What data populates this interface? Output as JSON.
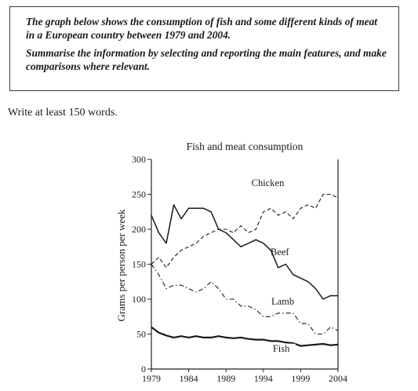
{
  "task": {
    "line1": "The graph below shows the consumption of fish and some different kinds of meat in a European country between 1979 and 2004.",
    "line2": "Summarise the information by selecting and reporting the main features, and make comparisons where relevant."
  },
  "instruction": "Write at least 150 words.",
  "chart_data": {
    "type": "line",
    "title": "Fish and meat consumption",
    "xlabel": "",
    "ylabel": "Grams per person per week",
    "xlim": [
      1979,
      2004
    ],
    "ylim": [
      0,
      300
    ],
    "xticks": [
      1979,
      1984,
      1989,
      1994,
      1999,
      2004
    ],
    "yticks": [
      0,
      50,
      100,
      150,
      200,
      250,
      300
    ],
    "legend": "inline labels",
    "series": [
      {
        "name": "Chicken",
        "style": "dashed",
        "x": [
          1979,
          1980,
          1981,
          1982,
          1983,
          1984,
          1985,
          1986,
          1987,
          1988,
          1989,
          1990,
          1991,
          1992,
          1993,
          1994,
          1995,
          1996,
          1997,
          1998,
          1999,
          2000,
          2001,
          2002,
          2003,
          2004
        ],
        "values": [
          150,
          160,
          145,
          160,
          170,
          175,
          180,
          190,
          195,
          200,
          200,
          195,
          205,
          195,
          200,
          225,
          230,
          220,
          225,
          215,
          230,
          235,
          230,
          250,
          250,
          245
        ]
      },
      {
        "name": "Beef",
        "style": "solid",
        "x": [
          1979,
          1980,
          1981,
          1982,
          1983,
          1984,
          1985,
          1986,
          1987,
          1988,
          1989,
          1990,
          1991,
          1992,
          1993,
          1994,
          1995,
          1996,
          1997,
          1998,
          1999,
          2000,
          2001,
          2002,
          2003,
          2004
        ],
        "values": [
          220,
          195,
          180,
          235,
          215,
          230,
          230,
          230,
          225,
          200,
          195,
          185,
          175,
          180,
          185,
          180,
          170,
          145,
          150,
          135,
          130,
          125,
          115,
          100,
          105,
          105
        ]
      },
      {
        "name": "Lamb",
        "style": "dashdot",
        "x": [
          1979,
          1980,
          1981,
          1982,
          1983,
          1984,
          1985,
          1986,
          1987,
          1988,
          1989,
          1990,
          1991,
          1992,
          1993,
          1994,
          1995,
          1996,
          1997,
          1998,
          1999,
          2000,
          2001,
          2002,
          2003,
          2004
        ],
        "values": [
          150,
          135,
          115,
          120,
          120,
          115,
          110,
          115,
          125,
          115,
          100,
          100,
          90,
          90,
          85,
          75,
          75,
          80,
          80,
          80,
          65,
          65,
          50,
          50,
          60,
          55
        ]
      },
      {
        "name": "Fish",
        "style": "solid-thick",
        "x": [
          1979,
          1980,
          1981,
          1982,
          1983,
          1984,
          1985,
          1986,
          1987,
          1988,
          1989,
          1990,
          1991,
          1992,
          1993,
          1994,
          1995,
          1996,
          1997,
          1998,
          1999,
          2000,
          2001,
          2002,
          2003,
          2004
        ],
        "values": [
          60,
          52,
          48,
          45,
          47,
          45,
          47,
          45,
          45,
          47,
          45,
          44,
          45,
          43,
          42,
          42,
          40,
          40,
          38,
          37,
          33,
          34,
          35,
          36,
          34,
          35
        ]
      }
    ]
  }
}
